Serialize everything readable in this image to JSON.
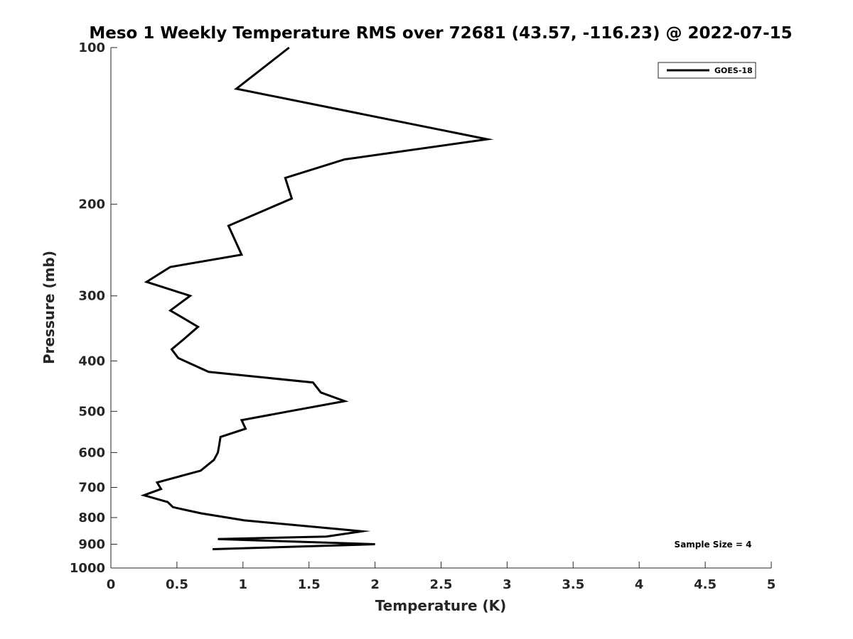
{
  "chart_data": {
    "type": "line",
    "title": "Meso 1 Weekly Temperature RMS over 72681 (43.57, -116.23) @ 2022-07-15",
    "xlabel": "Temperature (K)",
    "ylabel": "Pressure (mb)",
    "xlim": [
      0,
      5
    ],
    "ylim": [
      100,
      1000
    ],
    "y_scale": "log",
    "y_reversed": true,
    "x_ticks": [
      0,
      0.5,
      1,
      1.5,
      2,
      2.5,
      3,
      3.5,
      4,
      4.5,
      5
    ],
    "x_tick_labels": [
      "0",
      "0.5",
      "1",
      "1.5",
      "2",
      "2.5",
      "3",
      "3.5",
      "4",
      "4.5",
      "5"
    ],
    "y_ticks": [
      100,
      200,
      300,
      400,
      500,
      600,
      700,
      800,
      900,
      1000
    ],
    "y_tick_labels": [
      "100",
      "200",
      "300",
      "400",
      "500",
      "600",
      "700",
      "800",
      "900",
      "1000"
    ],
    "grid": false,
    "legend_position": "top-right",
    "annotation": "Sample Size = 4",
    "series": [
      {
        "name": "GOES-18",
        "color": "#000000",
        "x": [
          1.35,
          0.95,
          2.85,
          1.77,
          1.32,
          1.37,
          0.89,
          0.99,
          0.45,
          0.27,
          0.6,
          0.45,
          0.66,
          0.56,
          0.46,
          0.51,
          0.74,
          1.53,
          1.59,
          1.77,
          1.35,
          0.99,
          1.02,
          0.83,
          0.82,
          0.81,
          0.78,
          0.68,
          0.35,
          0.38,
          0.25,
          0.43,
          0.47,
          0.68,
          1.01,
          1.9,
          1.63,
          0.81,
          2.0,
          0.77
        ],
        "y": [
          100,
          120,
          150,
          164,
          178,
          195,
          220,
          250,
          264,
          282,
          300,
          320,
          344,
          362,
          380,
          395,
          420,
          440,
          460,
          478,
          500,
          520,
          540,
          560,
          580,
          600,
          620,
          650,
          685,
          705,
          725,
          747,
          764,
          785,
          810,
          850,
          870,
          880,
          900,
          920
        ]
      }
    ]
  }
}
